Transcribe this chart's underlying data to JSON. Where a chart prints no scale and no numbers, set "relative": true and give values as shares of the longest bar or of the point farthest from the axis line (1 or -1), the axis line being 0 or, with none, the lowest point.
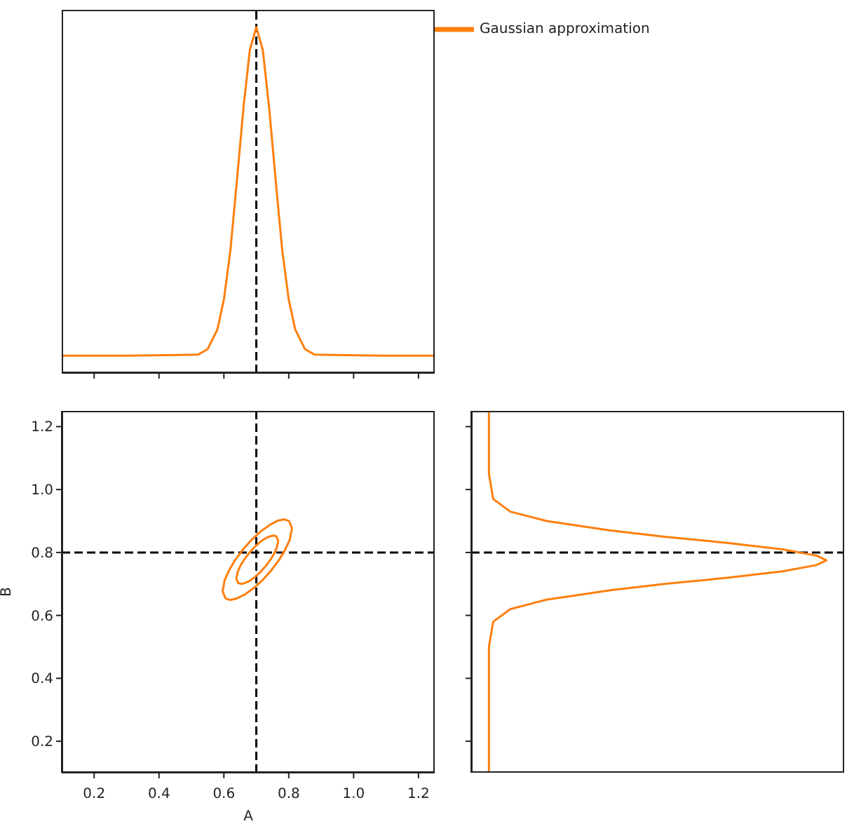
{
  "chart_data": [
    {
      "type": "line",
      "relative": true,
      "xlim": [
        0.1,
        1.25
      ],
      "xticks": [
        0.2,
        0.4,
        0.6,
        0.8,
        1,
        1.2
      ],
      "tick_labels": false,
      "legend": "top right",
      "series": [
        {
          "name": "Gaussian approximation",
          "color": "#ff7f0e",
          "x": [
            0.1,
            0.3,
            0.52,
            0.55,
            0.58,
            0.6,
            0.62,
            0.64,
            0.66,
            0.68,
            0.7,
            0.72,
            0.74,
            0.76,
            0.78,
            0.8,
            0.82,
            0.85,
            0.88,
            1.1,
            1.25
          ],
          "values": [
            0.05,
            0.05,
            0.053,
            0.069,
            0.126,
            0.212,
            0.354,
            0.554,
            0.763,
            0.934,
            1,
            0.934,
            0.763,
            0.554,
            0.354,
            0.212,
            0.126,
            0.069,
            0.053,
            0.05,
            0.05
          ]
        }
      ],
      "ref_lines": [
        {
          "axis": "x",
          "value": 0.7,
          "color": "#000000",
          "line_style": "dashed"
        }
      ]
    },
    {
      "type": "line",
      "xlabel": "A",
      "ylabel": "B",
      "xlim": [
        0.1,
        1.25
      ],
      "ylim": [
        0.1,
        1.25
      ],
      "xticks": [
        0.2,
        0.4,
        0.6,
        0.8,
        {
          "value": 1,
          "label": "1.0"
        },
        1.2
      ],
      "yticks": [
        0.2,
        0.4,
        0.6,
        0.8,
        {
          "value": 1,
          "label": "1.0"
        },
        1.2
      ],
      "series": [
        {
          "color": "#ff7f0e",
          "x": [
            0.596,
            0.603,
            0.617,
            0.636,
            0.66,
            0.687,
            0.715,
            0.742,
            0.766,
            0.787,
            0.801,
            0.81
          ],
          "values": [
            0.677,
            0.714,
            0.745,
            0.778,
            0.811,
            0.842,
            0.868,
            0.888,
            0.901,
            0.905,
            0.9,
            0.877
          ]
        },
        {
          "color": "#ff7f0e",
          "x": [
            0.596,
            0.605,
            0.619,
            0.64,
            0.664,
            0.691,
            0.719,
            0.746,
            0.77,
            0.789,
            0.803,
            0.81
          ],
          "values": [
            0.677,
            0.654,
            0.649,
            0.654,
            0.666,
            0.686,
            0.712,
            0.743,
            0.776,
            0.809,
            0.84,
            0.877
          ]
        },
        {
          "color": "#ff7f0e",
          "x": [
            0.638,
            0.643,
            0.651,
            0.663,
            0.677,
            0.693,
            0.71,
            0.726,
            0.741,
            0.753,
            0.762,
            0.768
          ],
          "values": [
            0.717,
            0.739,
            0.758,
            0.778,
            0.797,
            0.816,
            0.832,
            0.844,
            0.851,
            0.854,
            0.851,
            0.837
          ]
        },
        {
          "color": "#ff7f0e",
          "x": [
            0.638,
            0.644,
            0.653,
            0.665,
            0.68,
            0.696,
            0.713,
            0.729,
            0.743,
            0.755,
            0.763,
            0.768
          ],
          "values": [
            0.717,
            0.703,
            0.7,
            0.703,
            0.71,
            0.722,
            0.738,
            0.757,
            0.776,
            0.796,
            0.815,
            0.837
          ]
        }
      ],
      "ref_lines": [
        {
          "axis": "x",
          "value": 0.7,
          "color": "#000000",
          "line_style": "dashed"
        },
        {
          "axis": "y",
          "value": 0.8,
          "color": "#000000",
          "line_style": "dashed"
        }
      ]
    },
    {
      "type": "line",
      "orientation": "horizontal",
      "relative": true,
      "ylim": [
        0.1,
        1.25
      ],
      "yticks": [
        0.2,
        0.4,
        0.6,
        0.8,
        1,
        1.2
      ],
      "tick_labels": false,
      "series": [
        {
          "color": "#ff7f0e",
          "x": [
            0.1,
            0.5,
            0.58,
            0.62,
            0.65,
            0.68,
            0.7,
            0.72,
            0.74,
            0.76,
            0.775,
            0.79,
            0.81,
            0.83,
            0.85,
            0.87,
            0.9,
            0.93,
            0.97,
            1.05,
            1.25
          ],
          "values": [
            0.05,
            0.05,
            0.062,
            0.11,
            0.212,
            0.392,
            0.544,
            0.725,
            0.877,
            0.972,
            1,
            0.972,
            0.877,
            0.725,
            0.544,
            0.392,
            0.212,
            0.11,
            0.062,
            0.05,
            0.05
          ]
        }
      ],
      "ref_lines": [
        {
          "axis": "y",
          "value": 0.8,
          "color": "#000000",
          "line_style": "dashed"
        }
      ]
    }
  ]
}
